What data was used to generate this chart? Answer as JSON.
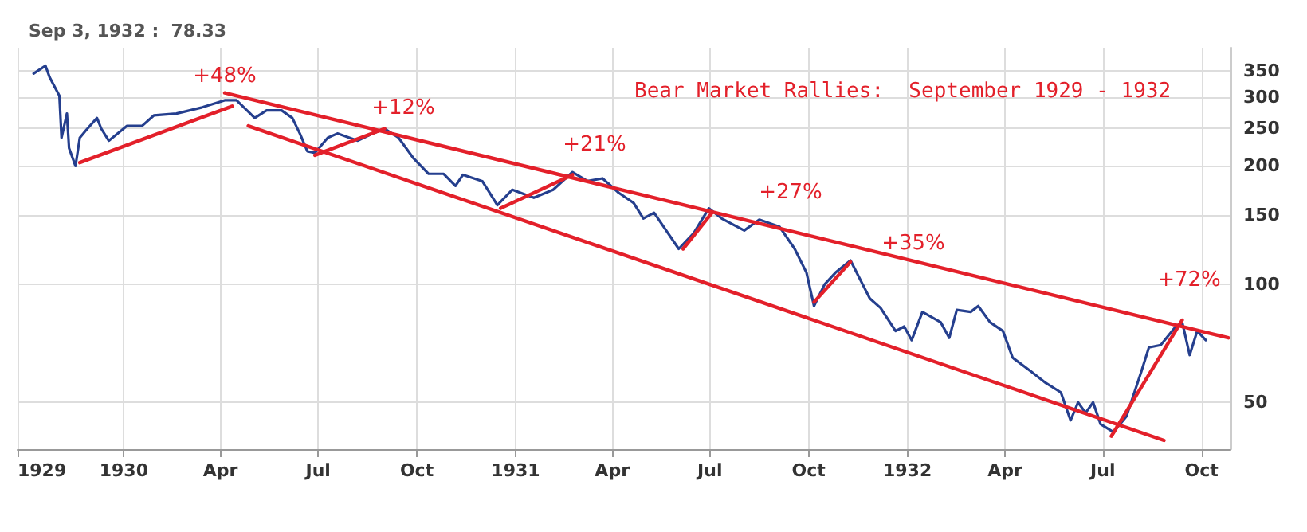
{
  "chart_data": {
    "type": "line",
    "title": "Bear Market Rallies:  September 1929 - 1932",
    "log": true,
    "grid": true,
    "marker": "none",
    "line_style": "solid",
    "xlim": [
      "1929-09-24",
      "1932-10-28"
    ],
    "xticks": [
      {
        "value": "1929-09-24",
        "label": "1929"
      },
      {
        "value": "1930-01-01",
        "label": "1930"
      },
      {
        "value": "1930-04-01",
        "label": "Apr"
      },
      {
        "value": "1930-07-01",
        "label": "Jul"
      },
      {
        "value": "1930-10-01",
        "label": "Oct"
      },
      {
        "value": "1931-01-01",
        "label": "1931"
      },
      {
        "value": "1931-04-01",
        "label": "Apr"
      },
      {
        "value": "1931-07-01",
        "label": "Jul"
      },
      {
        "value": "1931-10-01",
        "label": "Oct"
      },
      {
        "value": "1932-01-01",
        "label": "1932"
      },
      {
        "value": "1932-04-01",
        "label": "Apr"
      },
      {
        "value": "1932-07-01",
        "label": "Jul"
      },
      {
        "value": "1932-10-01",
        "label": "Oct"
      }
    ],
    "ylim": [
      38,
      400
    ],
    "yticks": [
      50,
      100,
      150,
      200,
      250,
      300,
      350
    ],
    "x": [
      "1929-10-09",
      "1929-10-20",
      "1929-10-24",
      "1929-11-02",
      "1929-11-04",
      "1929-11-09",
      "1929-11-11",
      "1929-11-17",
      "1929-11-21",
      "1929-11-27",
      "1929-12-07",
      "1929-12-11",
      "1929-12-18",
      "1930-01-04",
      "1930-01-18",
      "1930-01-29",
      "1930-02-19",
      "1930-03-15",
      "1930-04-05",
      "1930-04-16",
      "1930-05-03",
      "1930-05-14",
      "1930-05-28",
      "1930-06-07",
      "1930-06-14",
      "1930-06-21",
      "1930-06-28",
      "1930-07-10",
      "1930-07-19",
      "1930-08-07",
      "1930-08-21",
      "1930-09-01",
      "1930-09-14",
      "1930-09-28",
      "1930-10-12",
      "1930-10-26",
      "1930-11-06",
      "1930-11-13",
      "1930-12-01",
      "1930-12-15",
      "1930-12-29",
      "1931-01-18",
      "1931-02-05",
      "1931-02-23",
      "1931-03-09",
      "1931-03-23",
      "1931-04-07",
      "1931-04-21",
      "1931-04-30",
      "1931-05-10",
      "1931-05-19",
      "1931-06-02",
      "1931-06-16",
      "1931-06-30",
      "1931-07-12",
      "1931-08-02",
      "1931-08-16",
      "1931-09-04",
      "1931-09-18",
      "1931-09-29",
      "1931-10-06",
      "1931-10-16",
      "1931-10-26",
      "1931-11-09",
      "1931-11-27",
      "1931-12-07",
      "1931-12-21",
      "1931-12-29",
      "1932-01-05",
      "1932-01-15",
      "1932-02-01",
      "1932-02-09",
      "1932-02-16",
      "1932-02-29",
      "1932-03-07",
      "1932-03-18",
      "1932-03-30",
      "1932-04-08",
      "1932-04-25",
      "1932-05-09",
      "1932-05-23",
      "1932-06-01",
      "1932-06-08",
      "1932-06-15",
      "1932-06-22",
      "1932-06-29",
      "1932-07-11",
      "1932-07-23",
      "1932-08-06",
      "1932-08-13",
      "1932-08-24",
      "1932-09-07",
      "1932-09-13",
      "1932-09-20",
      "1932-09-27",
      "1932-10-05"
    ],
    "series": [
      {
        "type": "line",
        "color": "#253f8e",
        "values": [
          344,
          360,
          336,
          302,
          236,
          272,
          222,
          200,
          236,
          247,
          265,
          249,
          232,
          253,
          253,
          269,
          272,
          282,
          294,
          294,
          265,
          277,
          277,
          265,
          242,
          218,
          216,
          236,
          242,
          232,
          242,
          249,
          236,
          209,
          191,
          191,
          178,
          190,
          183,
          159,
          174,
          166,
          174,
          193,
          183,
          186,
          171,
          161,
          147,
          152,
          140,
          123,
          135,
          156,
          147,
          137,
          146,
          140,
          123,
          107,
          88,
          100,
          107,
          115,
          92,
          87,
          76,
          78,
          72,
          85,
          80,
          73,
          86,
          85,
          88,
          80,
          76,
          65,
          60,
          56,
          53,
          45,
          50,
          47,
          50,
          44,
          42,
          46,
          60,
          69,
          70,
          78,
          80,
          66,
          76,
          72
        ]
      },
      {
        "type": "line",
        "color": "#e3202a",
        "x": [
          "1930-04-05",
          "1932-10-26"
        ],
        "values": [
          307,
          73
        ]
      },
      {
        "type": "line",
        "color": "#e3202a",
        "x": [
          "1930-04-27",
          "1932-08-27"
        ],
        "values": [
          253,
          40
        ]
      },
      {
        "type": "line",
        "color": "#e3202a",
        "x": [
          "1929-11-21",
          "1930-04-12"
        ],
        "values": [
          204,
          284
        ]
      },
      {
        "type": "line",
        "color": "#e3202a",
        "x": [
          "1930-06-28",
          "1930-09-01"
        ],
        "values": [
          213,
          249
        ]
      },
      {
        "type": "line",
        "color": "#e3202a",
        "x": [
          "1930-12-18",
          "1931-02-23"
        ],
        "values": [
          156,
          190
        ]
      },
      {
        "type": "line",
        "color": "#e3202a",
        "x": [
          "1931-06-06",
          "1931-07-03"
        ],
        "values": [
          123,
          152
        ]
      },
      {
        "type": "line",
        "color": "#e3202a",
        "x": [
          "1931-10-06",
          "1931-11-09"
        ],
        "values": [
          90,
          114
        ]
      },
      {
        "type": "line",
        "color": "#e3202a",
        "x": [
          "1932-07-09",
          "1932-09-13"
        ],
        "values": [
          41,
          81
        ]
      }
    ],
    "annotations": [
      "Sep 3, 1932 :  78.33",
      "+48%",
      "+12%",
      "+21%",
      "+27%",
      "+35%",
      "+72%"
    ]
  }
}
